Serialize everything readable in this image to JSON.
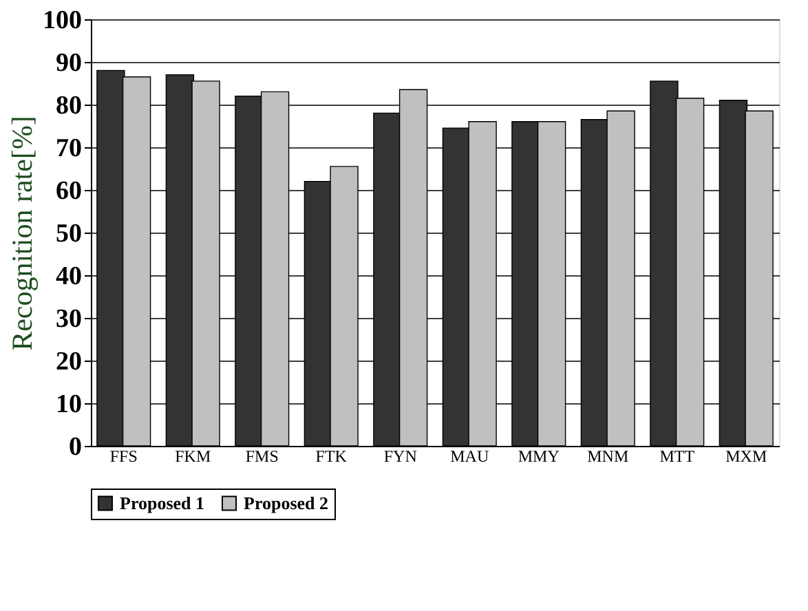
{
  "chart_data": {
    "type": "bar",
    "ylabel": "Recognition rate[%]",
    "categories": [
      "FFS",
      "FKM",
      "FMS",
      "FTK",
      "FYN",
      "MAU",
      "MMY",
      "MNM",
      "MTT",
      "MXM"
    ],
    "series": [
      {
        "name": "Proposed 1",
        "color": "#333333",
        "values": [
          88,
          87,
          82,
          62,
          78,
          74.5,
          76,
          76.5,
          85.5,
          81
        ]
      },
      {
        "name": "Proposed 2",
        "color": "#c0c0c0",
        "values": [
          86.5,
          85.5,
          83,
          65.5,
          83.5,
          76,
          76,
          78.5,
          81.5,
          78.5
        ]
      }
    ],
    "ylim": [
      0,
      100
    ],
    "yticks": [
      0,
      10,
      20,
      30,
      40,
      50,
      60,
      70,
      80,
      90,
      100
    ],
    "grid": "y",
    "legend": "bottom"
  }
}
